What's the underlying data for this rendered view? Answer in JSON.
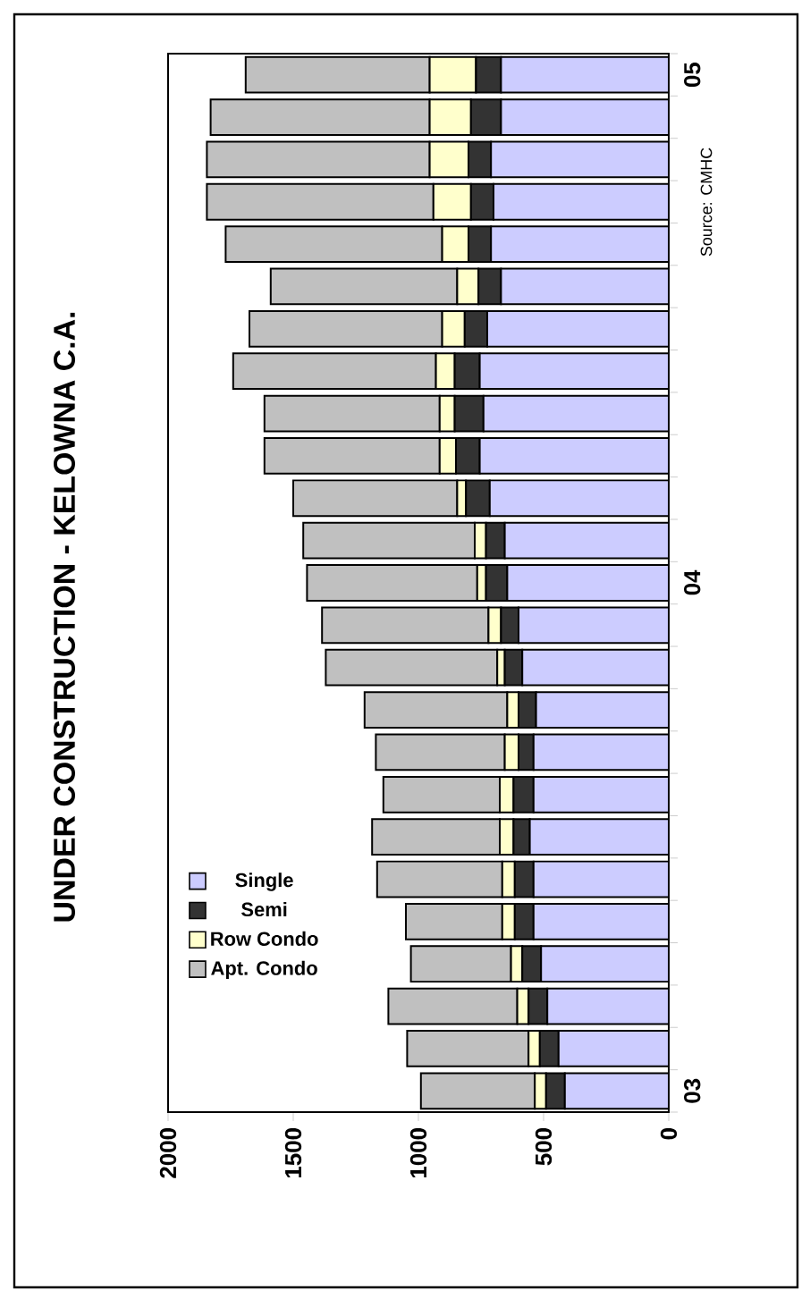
{
  "chart_data": {
    "type": "bar",
    "stacked": true,
    "orientation": "horizontal",
    "title": "UNDER CONSTRUCTION - KELOWNA C.A.",
    "annotations": [
      "Source: CMHC"
    ],
    "categories": [
      "05",
      null,
      null,
      null,
      null,
      null,
      null,
      null,
      null,
      null,
      null,
      null,
      "04",
      null,
      null,
      null,
      null,
      null,
      null,
      null,
      null,
      null,
      null,
      null,
      "03"
    ],
    "series": [
      {
        "name": "Single",
        "color": "#ccccff",
        "values": [
          670,
          670,
          710,
          700,
          710,
          670,
          725,
          755,
          740,
          755,
          715,
          655,
          645,
          600,
          585,
          530,
          540,
          540,
          555,
          540,
          540,
          510,
          485,
          440,
          415
        ]
      },
      {
        "name": "Semi",
        "color": "#333333",
        "values": [
          100,
          120,
          90,
          90,
          90,
          90,
          90,
          100,
          115,
          95,
          95,
          75,
          85,
          70,
          70,
          70,
          60,
          80,
          65,
          75,
          75,
          75,
          75,
          75,
          75
        ]
      },
      {
        "name": "Row Condo",
        "color": "#ffffcc",
        "values": [
          185,
          165,
          155,
          150,
          105,
          85,
          90,
          75,
          60,
          65,
          35,
          45,
          35,
          50,
          30,
          45,
          55,
          55,
          55,
          50,
          50,
          45,
          45,
          45,
          45
        ]
      },
      {
        "name": "Apt. Condo",
        "color": "#c0c0c0",
        "values": [
          735,
          875,
          890,
          905,
          865,
          745,
          770,
          810,
          700,
          700,
          655,
          685,
          680,
          665,
          685,
          570,
          515,
          465,
          510,
          500,
          385,
          400,
          515,
          485,
          455
        ]
      }
    ],
    "xlim": [
      2000,
      0
    ],
    "xticks": [
      2000,
      1500,
      1000,
      500,
      0
    ],
    "legend": "bottom left"
  }
}
